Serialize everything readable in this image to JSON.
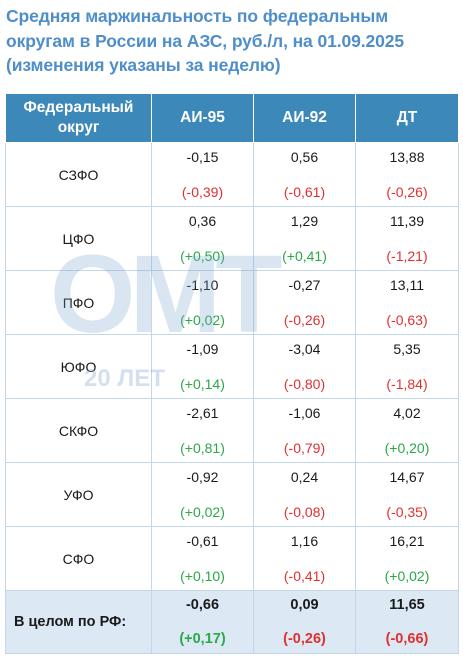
{
  "title": "Средняя маржинальность по федеральным округам в России на АЗС, руб./л, на 01.09.2025 (изменения указаны за неделю)",
  "watermark": {
    "logo": "ОМТ",
    "caption": "20 ЛЕТ"
  },
  "headers": {
    "region": "Федеральный округ",
    "ai95": "АИ-95",
    "ai92": "АИ-92",
    "dt": "ДТ"
  },
  "rows": [
    {
      "region": "СЗФО",
      "ai95": {
        "value": "-0,15",
        "change": "(-0,39)"
      },
      "ai92": {
        "value": "0,56",
        "change": "(-0,61)"
      },
      "dt": {
        "value": "13,88",
        "change": "(-0,26)"
      }
    },
    {
      "region": "ЦФО",
      "ai95": {
        "value": "0,36",
        "change": "(+0,50)"
      },
      "ai92": {
        "value": "1,29",
        "change": "(+0,41)"
      },
      "dt": {
        "value": "11,39",
        "change": "(-1,21)"
      }
    },
    {
      "region": "ПФО",
      "ai95": {
        "value": "-1,10",
        "change": "(+0,02)"
      },
      "ai92": {
        "value": "-0,27",
        "change": "(-0,26)"
      },
      "dt": {
        "value": "13,11",
        "change": "(-0,63)"
      }
    },
    {
      "region": "ЮФО",
      "ai95": {
        "value": "-1,09",
        "change": "(+0,14)"
      },
      "ai92": {
        "value": "-3,04",
        "change": "(-0,80)"
      },
      "dt": {
        "value": "5,35",
        "change": "(-1,84)"
      }
    },
    {
      "region": "СКФО",
      "ai95": {
        "value": "-2,61",
        "change": "(+0,81)"
      },
      "ai92": {
        "value": "-1,06",
        "change": "(-0,79)"
      },
      "dt": {
        "value": "4,02",
        "change": "(+0,20)"
      }
    },
    {
      "region": "УФО",
      "ai95": {
        "value": "-0,92",
        "change": "(+0,02)"
      },
      "ai92": {
        "value": "0,24",
        "change": "(-0,08)"
      },
      "dt": {
        "value": "14,67",
        "change": "(-0,35)"
      }
    },
    {
      "region": "СФО",
      "ai95": {
        "value": "-0,61",
        "change": "(+0,10)"
      },
      "ai92": {
        "value": "1,16",
        "change": "(-0,41)"
      },
      "dt": {
        "value": "16,21",
        "change": "(+0,02)"
      }
    }
  ],
  "total": {
    "region": "В целом по РФ:",
    "ai95": {
      "value": "-0,66",
      "change": "(+0,17)"
    },
    "ai92": {
      "value": "0,09",
      "change": "(-0,26)"
    },
    "dt": {
      "value": "11,65",
      "change": "(-0,66)"
    }
  },
  "colors": {
    "title": "#4f8ec8",
    "header_bg": "#3c88b8",
    "total_bg": "#dce9f5",
    "negative": "#e03030",
    "positive": "#2aa84a"
  }
}
